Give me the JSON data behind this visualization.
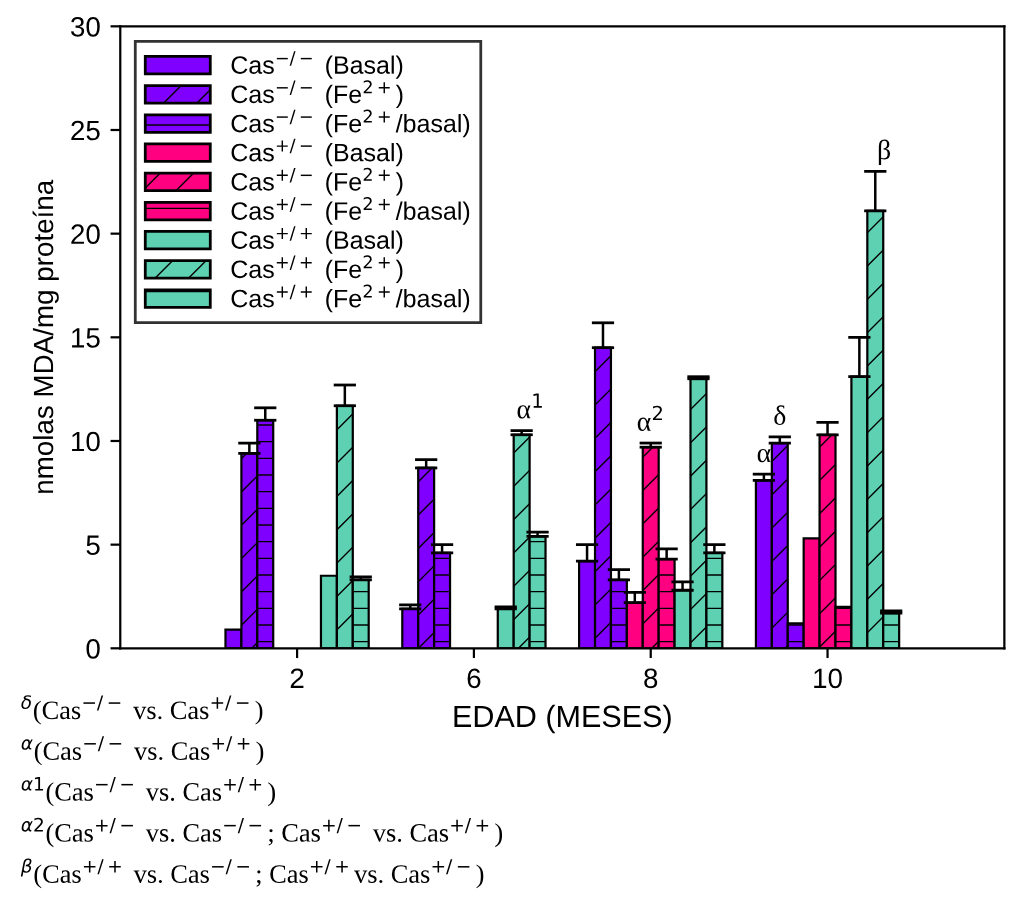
{
  "chart_data": {
    "type": "bar",
    "xlabel": "EDAD (MESES)",
    "ylabel": "nmolas MDA/mg proteína",
    "categories": [
      "2",
      "6",
      "8",
      "10"
    ],
    "series": [
      {
        "name": "Cas$^{−/−}$ (Basal)",
        "color": "#8000ff",
        "values": [
          0.9,
          1.9,
          4.2,
          8.1
        ],
        "errors": [
          null,
          [
            1.9,
            2.1
          ],
          [
            4.2,
            5.0
          ],
          [
            8.1,
            8.4
          ]
        ]
      },
      {
        "name": "Cas$^{−/−}$ (Fe$^{2+}$)",
        "color": "#8000ff",
        "values": [
          9.4,
          8.7,
          14.5,
          9.9
        ],
        "errors": [
          [
            9.4,
            9.9
          ],
          [
            8.7,
            9.1
          ],
          [
            14.5,
            15.7
          ],
          [
            9.9,
            10.2
          ]
        ]
      },
      {
        "name": "Cas$^{−/−}$ (Fe$^{2+}$/basal)",
        "color": "#8000ff",
        "values": [
          11.0,
          4.6,
          3.3,
          1.2
        ],
        "errors": [
          [
            11.0,
            11.6
          ],
          [
            4.6,
            5.0
          ],
          [
            3.3,
            3.8
          ],
          null
        ]
      },
      {
        "name": "Cas$^{+/−}$ (Basal)",
        "color": "#ff0080",
        "values": [
          null,
          null,
          2.2,
          5.3
        ],
        "errors": [
          null,
          null,
          [
            2.2,
            2.7
          ],
          null
        ]
      },
      {
        "name": "Cas$^{+/−}$ (Fe$^{2+}$)",
        "color": "#ff0080",
        "values": [
          null,
          null,
          9.7,
          10.3
        ],
        "errors": [
          null,
          null,
          [
            9.7,
            9.9
          ],
          [
            10.3,
            10.9
          ]
        ]
      },
      {
        "name": "Cas$^{+/−}$ (Fe$^{2+}$/basal)",
        "color": "#ff0080",
        "values": [
          null,
          null,
          4.3,
          2.0
        ],
        "errors": [
          null,
          null,
          [
            4.3,
            4.8
          ],
          null
        ]
      },
      {
        "name": "Cas$^{+/+}$ (Basal)",
        "color": "#5ed1b3",
        "values": [
          3.5,
          1.9,
          2.8,
          13.1
        ],
        "errors": [
          null,
          [
            1.9,
            2.0
          ],
          [
            2.8,
            3.2
          ],
          [
            13.1,
            15.0
          ]
        ]
      },
      {
        "name": "Cas$^{+/+}$ (Fe$^{2+}$)",
        "color": "#5ed1b3",
        "values": [
          11.7,
          10.3,
          13.0,
          21.1
        ],
        "errors": [
          [
            11.7,
            12.7
          ],
          [
            10.3,
            10.5
          ],
          [
            13.0,
            13.1
          ],
          [
            21.1,
            23.0
          ]
        ]
      },
      {
        "name": "Cas$^{+/+}$ (Fe$^{2+}$/basal)",
        "color": "#5ed1b3",
        "values": [
          3.3,
          5.4,
          4.6,
          1.7
        ],
        "errors": [
          [
            3.3,
            3.45
          ],
          [
            5.4,
            5.6
          ],
          [
            4.6,
            5.0
          ],
          [
            1.7,
            1.8
          ]
        ]
      }
    ],
    "ylim": [
      0,
      30
    ],
    "yticks": [
      0,
      5,
      10,
      15,
      20,
      25,
      30
    ],
    "grid": false,
    "legend": "top left",
    "annotations": [
      "α$^{1}$",
      "β",
      {
        "text": "α$^{2}$",
        "x": "8",
        "y": 9.7
      },
      {
        "text": "α",
        "x": "10",
        "y": 8.1
      },
      {
        "text": "δ",
        "x": "10",
        "y": 9.9
      },
      "$^{δ}$(Cas$^{−/−}$ vs. Cas$^{+/−}$)",
      "$^{α}$(Cas$^{−/−}$ vs. Cas$^{+/+}$)",
      "$^{α1}$(Cas$^{−/−}$ vs. Cas$^{+/+}$)",
      "$^{α2}$(Cas$^{+/−}$ vs. Cas$^{−/−}$; Cas$^{+/−}$ vs. Cas$^{+/+}$)",
      "$^{β}$(Cas$^{+/+}$ vs. Cas$^{−/−}$; Cas$^{+/+}$vs. Cas$^{+/−}$)"
    ]
  }
}
